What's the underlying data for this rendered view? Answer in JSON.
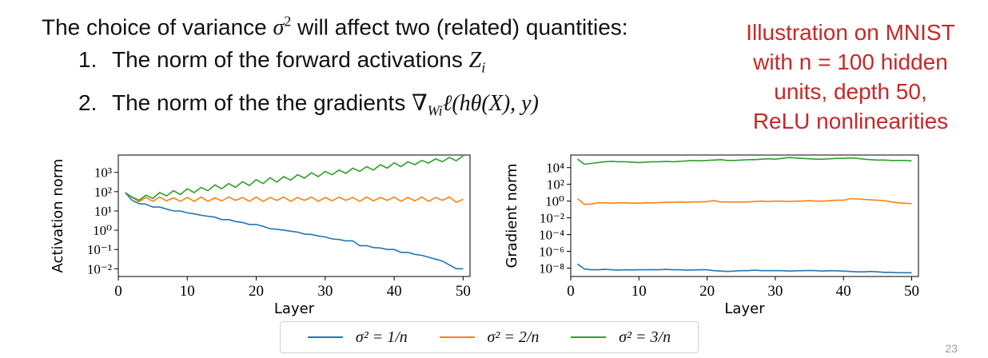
{
  "slide": {
    "heading": {
      "pre": "The choice of variance ",
      "symbol": "σ",
      "symbol_sup": "2",
      "post": " will affect two (related) quantities:"
    },
    "items": [
      {
        "num": "1.",
        "text": "The norm of the forward activations ",
        "math": "Z",
        "math_sub": "i",
        "math_tail": ""
      },
      {
        "num": "2.",
        "text": "The norm of the the gradients ",
        "math": "∇",
        "math_sub": "Wi",
        "math_tail": "ℓ(hθ(X), y)"
      }
    ],
    "note": {
      "line1": "Illustration on MNIST",
      "line2": "with n = 100 hidden",
      "line3": "units, depth 50,",
      "line4": "ReLU nonlinearities"
    },
    "page_number": "23"
  },
  "legend": [
    {
      "label": "σ² = 1/n",
      "color": "#1f77b4"
    },
    {
      "label": "σ² = 2/n",
      "color": "#ff7f0e"
    },
    {
      "label": "σ² = 3/n",
      "color": "#2ca02c"
    }
  ],
  "chart_data": [
    {
      "type": "line",
      "title": "",
      "xlabel": "Layer",
      "ylabel": "Activation norm",
      "yscale": "log",
      "xlim": [
        0,
        51
      ],
      "ylim_log10": [
        -2.4,
        3.9
      ],
      "xticks": [
        "0",
        "10",
        "20",
        "30",
        "40",
        "50"
      ],
      "yticks": [
        "10³",
        "10²",
        "10¹",
        "10⁰",
        "10⁻¹",
        "10⁻²"
      ],
      "ytick_exponents": [
        3,
        2,
        1,
        0,
        -1,
        -2
      ],
      "grid": false,
      "x": [
        1,
        2,
        3,
        4,
        5,
        6,
        7,
        8,
        9,
        10,
        11,
        12,
        13,
        14,
        15,
        16,
        17,
        18,
        19,
        20,
        21,
        22,
        23,
        24,
        25,
        26,
        27,
        28,
        29,
        30,
        31,
        32,
        33,
        34,
        35,
        36,
        37,
        38,
        39,
        40,
        41,
        42,
        43,
        44,
        45,
        46,
        47,
        48,
        49,
        50
      ],
      "series": [
        {
          "name": "σ² = 1/n",
          "color": "#1f77b4",
          "log10_values": [
            1.95,
            1.55,
            1.38,
            1.35,
            1.2,
            1.2,
            1.1,
            1.0,
            1.0,
            0.9,
            0.85,
            0.78,
            0.72,
            0.68,
            0.55,
            0.55,
            0.45,
            0.4,
            0.3,
            0.3,
            0.2,
            0.08,
            0.05,
            0.0,
            -0.05,
            -0.1,
            -0.2,
            -0.22,
            -0.3,
            -0.35,
            -0.45,
            -0.48,
            -0.55,
            -0.55,
            -0.8,
            -0.8,
            -0.9,
            -0.92,
            -1.0,
            -1.0,
            -1.15,
            -1.15,
            -1.25,
            -1.3,
            -1.4,
            -1.5,
            -1.6,
            -1.8,
            -2.0,
            -2.0
          ]
        },
        {
          "name": "σ² = 2/n",
          "color": "#ff7f0e",
          "log10_values": [
            1.95,
            1.7,
            1.48,
            1.7,
            1.5,
            1.72,
            1.52,
            1.68,
            1.5,
            1.7,
            1.5,
            1.72,
            1.5,
            1.68,
            1.52,
            1.72,
            1.55,
            1.7,
            1.5,
            1.72,
            1.5,
            1.7,
            1.55,
            1.72,
            1.5,
            1.7,
            1.55,
            1.72,
            1.5,
            1.7,
            1.52,
            1.72,
            1.55,
            1.7,
            1.5,
            1.72,
            1.52,
            1.7,
            1.55,
            1.72,
            1.5,
            1.7,
            1.52,
            1.72,
            1.5,
            1.7,
            1.55,
            1.72,
            1.45,
            1.6
          ]
        },
        {
          "name": "σ² = 3/n",
          "color": "#2ca02c",
          "log10_values": [
            1.95,
            1.72,
            1.55,
            1.82,
            1.65,
            1.95,
            1.78,
            2.05,
            1.85,
            2.15,
            1.95,
            2.22,
            2.05,
            2.35,
            2.15,
            2.42,
            2.22,
            2.52,
            2.32,
            2.62,
            2.42,
            2.72,
            2.5,
            2.78,
            2.6,
            2.88,
            2.7,
            2.98,
            2.78,
            3.05,
            2.88,
            3.12,
            2.95,
            3.22,
            3.05,
            3.3,
            3.12,
            3.4,
            3.22,
            3.5,
            3.3,
            3.55,
            3.4,
            3.62,
            3.48,
            3.7,
            3.55,
            3.78,
            3.6,
            3.85
          ]
        }
      ]
    },
    {
      "type": "line",
      "title": "",
      "xlabel": "Layer",
      "ylabel": "Gradient norm",
      "yscale": "log",
      "xlim": [
        0,
        51
      ],
      "ylim_log10": [
        -9.0,
        5.5
      ],
      "xticks": [
        "0",
        "10",
        "20",
        "30",
        "40",
        "50"
      ],
      "yticks": [
        "10⁴",
        "10²",
        "10⁰",
        "10⁻²",
        "10⁻⁴",
        "10⁻⁶",
        "10⁻⁸"
      ],
      "ytick_exponents": [
        4,
        2,
        0,
        -2,
        -4,
        -6,
        -8
      ],
      "grid": false,
      "x": [
        1,
        2,
        3,
        4,
        5,
        6,
        7,
        8,
        9,
        10,
        11,
        12,
        13,
        14,
        15,
        16,
        17,
        18,
        19,
        20,
        21,
        22,
        23,
        24,
        25,
        26,
        27,
        28,
        29,
        30,
        31,
        32,
        33,
        34,
        35,
        36,
        37,
        38,
        39,
        40,
        41,
        42,
        43,
        44,
        45,
        46,
        47,
        48,
        49,
        50
      ],
      "series": [
        {
          "name": "σ² = 1/n",
          "color": "#1f77b4",
          "log10_values": [
            -7.5,
            -8.1,
            -8.2,
            -8.2,
            -8.15,
            -8.2,
            -8.25,
            -8.2,
            -8.22,
            -8.2,
            -8.2,
            -8.18,
            -8.2,
            -8.15,
            -8.2,
            -8.2,
            -8.25,
            -8.22,
            -8.2,
            -8.2,
            -8.3,
            -8.35,
            -8.4,
            -8.35,
            -8.3,
            -8.3,
            -8.25,
            -8.3,
            -8.3,
            -8.3,
            -8.3,
            -8.35,
            -8.32,
            -8.3,
            -8.28,
            -8.3,
            -8.35,
            -8.3,
            -8.32,
            -8.35,
            -8.4,
            -8.45,
            -8.45,
            -8.4,
            -8.45,
            -8.5,
            -8.5,
            -8.55,
            -8.55,
            -8.55
          ]
        },
        {
          "name": "σ² = 2/n",
          "color": "#ff7f0e",
          "log10_values": [
            0.3,
            -0.4,
            -0.35,
            -0.2,
            -0.2,
            -0.25,
            -0.2,
            -0.2,
            -0.25,
            -0.25,
            -0.2,
            -0.2,
            -0.18,
            -0.15,
            -0.15,
            -0.1,
            -0.15,
            -0.1,
            -0.1,
            -0.05,
            0.05,
            -0.1,
            -0.1,
            -0.12,
            -0.1,
            -0.1,
            -0.05,
            0.0,
            -0.05,
            0.0,
            0.0,
            -0.05,
            0.0,
            0.0,
            0.05,
            0.0,
            0.0,
            0.05,
            0.1,
            0.1,
            0.3,
            0.25,
            0.2,
            0.15,
            0.1,
            0.05,
            -0.1,
            -0.2,
            -0.25,
            -0.3
          ]
        },
        {
          "name": "σ² = 3/n",
          "color": "#2ca02c",
          "log10_values": [
            5.0,
            4.4,
            4.5,
            4.6,
            4.7,
            4.75,
            4.7,
            4.7,
            4.65,
            4.6,
            4.65,
            4.7,
            4.7,
            4.75,
            4.7,
            4.75,
            4.8,
            4.85,
            4.8,
            4.85,
            4.9,
            4.95,
            4.85,
            4.85,
            4.9,
            4.95,
            4.95,
            5.0,
            5.05,
            5.0,
            5.1,
            5.2,
            5.15,
            5.1,
            5.05,
            5.0,
            5.0,
            5.05,
            5.1,
            5.1,
            5.15,
            5.1,
            5.0,
            4.95,
            4.9,
            4.9,
            4.85,
            4.85,
            4.85,
            4.8
          ]
        }
      ]
    }
  ]
}
